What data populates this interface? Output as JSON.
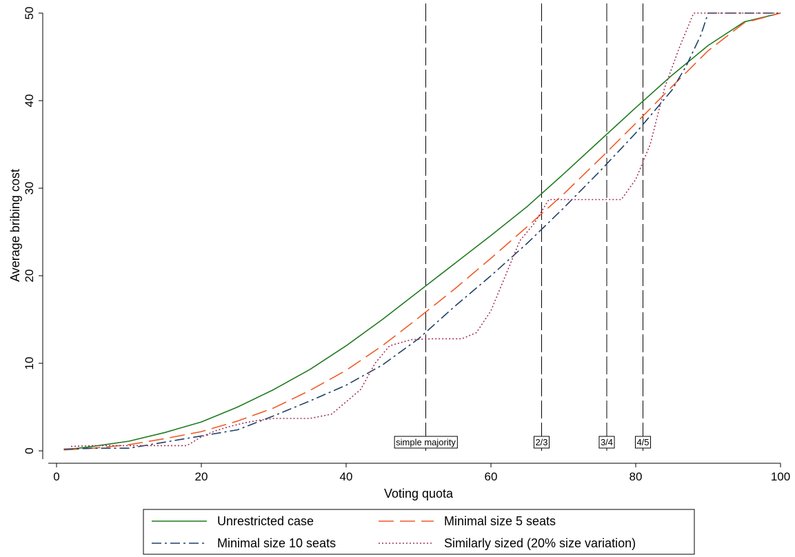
{
  "chart_data": {
    "type": "line",
    "title": "",
    "xlabel": "Voting quota",
    "ylabel": "Average bribing cost",
    "xlim": [
      0,
      100
    ],
    "ylim": [
      0,
      50
    ],
    "xticks": [
      0,
      20,
      40,
      60,
      80,
      100
    ],
    "yticks": [
      0,
      10,
      20,
      30,
      40,
      50
    ],
    "grid": false,
    "legend_position": "bottom",
    "reference_lines": [
      {
        "x": 51,
        "label": "simple majority"
      },
      {
        "x": 67,
        "label": "2/3"
      },
      {
        "x": 76,
        "label": "3/4"
      },
      {
        "x": 81,
        "label": "4/5"
      }
    ],
    "series": [
      {
        "name": "Unrestricted case",
        "color": "#1e7a1e",
        "dash": "solid",
        "points": [
          [
            1,
            0.1
          ],
          [
            5,
            0.5
          ],
          [
            10,
            1.1
          ],
          [
            15,
            2.1
          ],
          [
            20,
            3.3
          ],
          [
            25,
            5.0
          ],
          [
            30,
            7.0
          ],
          [
            35,
            9.3
          ],
          [
            40,
            12.0
          ],
          [
            45,
            15.0
          ],
          [
            50,
            18.2
          ],
          [
            55,
            21.4
          ],
          [
            60,
            24.6
          ],
          [
            65,
            27.9
          ],
          [
            70,
            31.6
          ],
          [
            75,
            35.4
          ],
          [
            80,
            39.2
          ],
          [
            85,
            42.9
          ],
          [
            90,
            46.3
          ],
          [
            95,
            49.0
          ],
          [
            100,
            50.0
          ]
        ]
      },
      {
        "name": "Minimal size 5 seats",
        "color": "#f05a28",
        "dash": "longdash",
        "points": [
          [
            1,
            0.1
          ],
          [
            5,
            0.3
          ],
          [
            10,
            0.7
          ],
          [
            15,
            1.4
          ],
          [
            20,
            2.2
          ],
          [
            25,
            3.4
          ],
          [
            30,
            4.9
          ],
          [
            35,
            6.9
          ],
          [
            40,
            9.2
          ],
          [
            45,
            12.0
          ],
          [
            50,
            15.2
          ],
          [
            55,
            18.5
          ],
          [
            60,
            22.0
          ],
          [
            65,
            25.6
          ],
          [
            70,
            29.3
          ],
          [
            75,
            33.3
          ],
          [
            80,
            37.4
          ],
          [
            85,
            41.6
          ],
          [
            90,
            45.7
          ],
          [
            95,
            48.9
          ],
          [
            100,
            50.0
          ]
        ]
      },
      {
        "name": "Minimal size 10 seats",
        "color": "#1f3f66",
        "dash": "dashdot",
        "points": [
          [
            1,
            0.2
          ],
          [
            5,
            0.3
          ],
          [
            10,
            0.3
          ],
          [
            15,
            1.0
          ],
          [
            20,
            1.7
          ],
          [
            25,
            2.4
          ],
          [
            30,
            4.0
          ],
          [
            35,
            5.7
          ],
          [
            40,
            7.5
          ],
          [
            45,
            9.8
          ],
          [
            50,
            12.8
          ],
          [
            55,
            16.5
          ],
          [
            60,
            20.0
          ],
          [
            65,
            23.7
          ],
          [
            70,
            27.7
          ],
          [
            75,
            31.9
          ],
          [
            80,
            36.3
          ],
          [
            85,
            41.2
          ],
          [
            87,
            44.0
          ],
          [
            89,
            47.5
          ],
          [
            90,
            50.0
          ],
          [
            95,
            50.0
          ],
          [
            100,
            50.0
          ]
        ]
      },
      {
        "name": "Similarly sized (20% size variation)",
        "color": "#a0305a",
        "dash": "dotted",
        "points": [
          [
            2,
            0.5
          ],
          [
            5,
            0.6
          ],
          [
            10,
            0.6
          ],
          [
            15,
            0.6
          ],
          [
            18,
            0.6
          ],
          [
            20,
            1.6
          ],
          [
            22,
            2.3
          ],
          [
            24,
            2.8
          ],
          [
            26,
            3.2
          ],
          [
            28,
            3.5
          ],
          [
            30,
            3.7
          ],
          [
            35,
            3.7
          ],
          [
            38,
            4.2
          ],
          [
            42,
            7.0
          ],
          [
            44,
            10.0
          ],
          [
            46,
            12.0
          ],
          [
            49,
            12.7
          ],
          [
            52,
            12.8
          ],
          [
            56,
            12.8
          ],
          [
            58,
            13.5
          ],
          [
            60,
            16.0
          ],
          [
            62,
            20.0
          ],
          [
            64,
            24.0
          ],
          [
            66,
            26.0
          ],
          [
            68,
            28.7
          ],
          [
            72,
            28.7
          ],
          [
            76,
            28.7
          ],
          [
            78,
            28.7
          ],
          [
            80,
            31.0
          ],
          [
            82,
            35.0
          ],
          [
            84,
            41.5
          ],
          [
            86,
            46.0
          ],
          [
            88,
            50.0
          ],
          [
            91,
            50.0
          ],
          [
            95,
            50.0
          ],
          [
            100,
            50.0
          ]
        ]
      }
    ]
  }
}
